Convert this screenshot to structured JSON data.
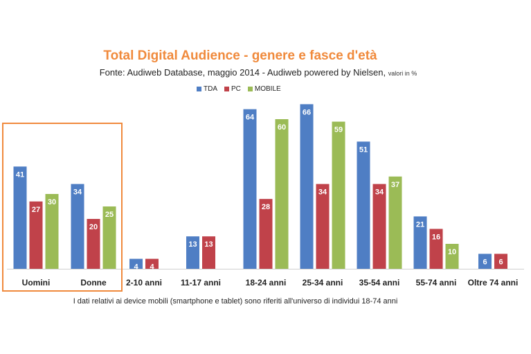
{
  "chart_data": {
    "type": "bar",
    "title": "Total Digital Audience - genere e fasce d'età",
    "subtitle": "Fonte: Audiweb Database, maggio 2014 - Audiweb powered by Nielsen,",
    "unit_note": "valori in %",
    "footnote": "I dati relativi ai device mobili (smartphone  e tablet) sono riferiti all'universo di individui 18-74 anni",
    "categories": [
      "Uomini",
      "Donne",
      "2-10 anni",
      "11-17 anni",
      "18-24 anni",
      "25-34 anni",
      "35-54 anni",
      "55-74 anni",
      "Oltre 74 anni"
    ],
    "series": [
      {
        "name": "TDA",
        "color": "#4f7ec4",
        "values": [
          41,
          34,
          4,
          13,
          64,
          66,
          51,
          21,
          6
        ]
      },
      {
        "name": "PC",
        "color": "#c0424a",
        "values": [
          27,
          20,
          4,
          13,
          28,
          34,
          34,
          16,
          6
        ]
      },
      {
        "name": "MOBILE",
        "color": "#9bbb56",
        "values": [
          30,
          25,
          null,
          null,
          60,
          59,
          37,
          10,
          null
        ]
      }
    ],
    "ylim": [
      0,
      70
    ],
    "grid": false,
    "legend_position": "top-center",
    "highlight_categories": [
      "Uomini",
      "Donne"
    ]
  }
}
